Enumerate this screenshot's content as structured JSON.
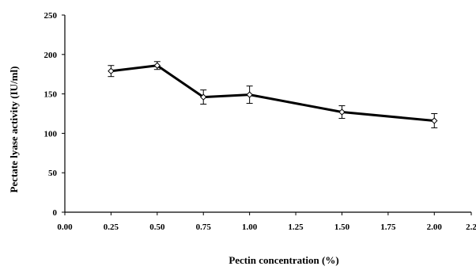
{
  "chart_data": {
    "type": "line",
    "title": "",
    "xlabel": "Pectin concentration (%)",
    "ylabel": "Pectate lyase activity (IU/ml)",
    "xlim": [
      0,
      2.2
    ],
    "ylim": [
      0,
      250
    ],
    "x_ticks": [
      "0.00",
      "0.25",
      "0.50",
      "0.75",
      "1.00",
      "1.25",
      "1.50",
      "1.75",
      "2.00",
      "2.2"
    ],
    "y_ticks": [
      "0",
      "50",
      "100",
      "150",
      "200",
      "250"
    ],
    "grid": false,
    "legend": "none",
    "marker": "diamond-open",
    "line_color": "#000000",
    "series": [
      {
        "x": [
          0.25,
          0.5,
          0.75,
          1.0,
          1.5,
          2.0
        ],
        "y": [
          179,
          186,
          146,
          149,
          127,
          116
        ],
        "error": [
          7,
          5,
          9,
          11,
          8,
          9
        ]
      }
    ]
  }
}
